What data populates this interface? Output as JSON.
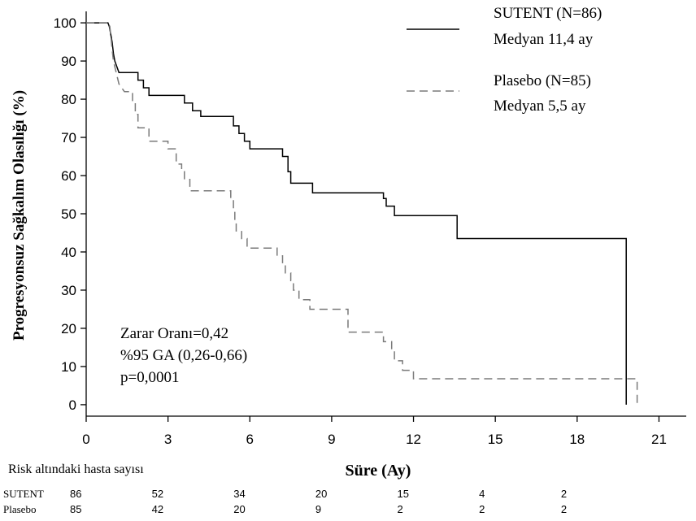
{
  "chart_data": {
    "type": "line",
    "title": "",
    "xlabel": "Süre (Ay)",
    "ylabel": "Progresyonsuz Sağkalım Olasılığı (%)",
    "xlim": [
      0,
      22
    ],
    "ylim": [
      -3,
      103
    ],
    "xticks": [
      "0",
      "3",
      "6",
      "9",
      "12",
      "15",
      "18",
      "21"
    ],
    "yticks": [
      "0",
      "10",
      "20",
      "30",
      "40",
      "50",
      "60",
      "70",
      "80",
      "90",
      "100"
    ],
    "grid": false,
    "legend_placement": "top-right",
    "series": [
      {
        "name": "SUTENT (N=86)",
        "subtitle": "Medyan 11,4 ay",
        "color": "#000000",
        "style": "solid",
        "points": [
          [
            0,
            100
          ],
          [
            0.8,
            100
          ],
          [
            0.85,
            99
          ],
          [
            0.9,
            97
          ],
          [
            0.95,
            95
          ],
          [
            1.0,
            92
          ],
          [
            1.05,
            90
          ],
          [
            1.1,
            89
          ],
          [
            1.2,
            87
          ],
          [
            1.9,
            87
          ],
          [
            1.9,
            85
          ],
          [
            2.1,
            85
          ],
          [
            2.1,
            83
          ],
          [
            2.3,
            83
          ],
          [
            2.3,
            81
          ],
          [
            3.6,
            81
          ],
          [
            3.6,
            79
          ],
          [
            3.9,
            79
          ],
          [
            3.9,
            77
          ],
          [
            4.2,
            77
          ],
          [
            4.2,
            75.5
          ],
          [
            5.4,
            75.5
          ],
          [
            5.4,
            73
          ],
          [
            5.6,
            73
          ],
          [
            5.6,
            71
          ],
          [
            5.8,
            71
          ],
          [
            5.8,
            69
          ],
          [
            6.0,
            69
          ],
          [
            6.0,
            67
          ],
          [
            7.2,
            67
          ],
          [
            7.2,
            65
          ],
          [
            7.4,
            65
          ],
          [
            7.4,
            61
          ],
          [
            7.5,
            61
          ],
          [
            7.5,
            58
          ],
          [
            8.3,
            58
          ],
          [
            8.3,
            55.5
          ],
          [
            10.9,
            55.5
          ],
          [
            10.9,
            54
          ],
          [
            11.0,
            54
          ],
          [
            11.0,
            52
          ],
          [
            11.3,
            52
          ],
          [
            11.3,
            49.5
          ],
          [
            13.6,
            49.5
          ],
          [
            13.6,
            43.5
          ],
          [
            19.8,
            43.5
          ],
          [
            19.8,
            0
          ]
        ]
      },
      {
        "name": "Plasebo (N=85)",
        "subtitle": "Medyan 5,5 ay",
        "color": "#7a7a7a",
        "style": "dashed",
        "points": [
          [
            0,
            100
          ],
          [
            0.85,
            100
          ],
          [
            0.9,
            97
          ],
          [
            0.95,
            93
          ],
          [
            1.0,
            90
          ],
          [
            1.1,
            87
          ],
          [
            1.2,
            84
          ],
          [
            1.4,
            82
          ],
          [
            1.7,
            82
          ],
          [
            1.7,
            79
          ],
          [
            1.8,
            79
          ],
          [
            1.8,
            76
          ],
          [
            1.9,
            76
          ],
          [
            1.9,
            72.5
          ],
          [
            2.3,
            72.5
          ],
          [
            2.3,
            69
          ],
          [
            3.0,
            69
          ],
          [
            3.0,
            67
          ],
          [
            3.3,
            67
          ],
          [
            3.3,
            63
          ],
          [
            3.5,
            63
          ],
          [
            3.5,
            61
          ],
          [
            3.6,
            61
          ],
          [
            3.6,
            59
          ],
          [
            3.8,
            59
          ],
          [
            3.8,
            56
          ],
          [
            5.3,
            56
          ],
          [
            5.3,
            54
          ],
          [
            5.4,
            54
          ],
          [
            5.4,
            51
          ],
          [
            5.45,
            51
          ],
          [
            5.45,
            48
          ],
          [
            5.5,
            48
          ],
          [
            5.5,
            45.5
          ],
          [
            5.7,
            45.5
          ],
          [
            5.7,
            43.5
          ],
          [
            5.9,
            43.5
          ],
          [
            5.9,
            41
          ],
          [
            7.0,
            41
          ],
          [
            7.0,
            39
          ],
          [
            7.2,
            39
          ],
          [
            7.2,
            37
          ],
          [
            7.3,
            37
          ],
          [
            7.3,
            34.5
          ],
          [
            7.5,
            34.5
          ],
          [
            7.5,
            32.5
          ],
          [
            7.6,
            32.5
          ],
          [
            7.6,
            30
          ],
          [
            7.8,
            30
          ],
          [
            7.8,
            27.5
          ],
          [
            8.2,
            27.5
          ],
          [
            8.2,
            25
          ],
          [
            9.6,
            25
          ],
          [
            9.6,
            19
          ],
          [
            10.9,
            19
          ],
          [
            10.9,
            16.5
          ],
          [
            11.2,
            16.5
          ],
          [
            11.2,
            14
          ],
          [
            11.3,
            14
          ],
          [
            11.3,
            11.5
          ],
          [
            11.6,
            11.5
          ],
          [
            11.6,
            9
          ],
          [
            12.0,
            9
          ],
          [
            12.0,
            6.8
          ],
          [
            20.2,
            6.8
          ],
          [
            20.2,
            0
          ]
        ]
      }
    ],
    "annotations": [
      "Zarar Oranı=0,42",
      "%95 GA (0,26-0,66)",
      "p=0,0001"
    ],
    "risk_table": {
      "title": "Risk altındaki hasta sayısı",
      "times": [
        0,
        3,
        6,
        9,
        12,
        15,
        18
      ],
      "rows": [
        {
          "label": "SUTENT",
          "values": [
            "86",
            "52",
            "34",
            "20",
            "15",
            "4",
            "2"
          ]
        },
        {
          "label": "Plasebo",
          "values": [
            "85",
            "42",
            "20",
            "9",
            "2",
            "2",
            "2"
          ]
        }
      ]
    }
  }
}
